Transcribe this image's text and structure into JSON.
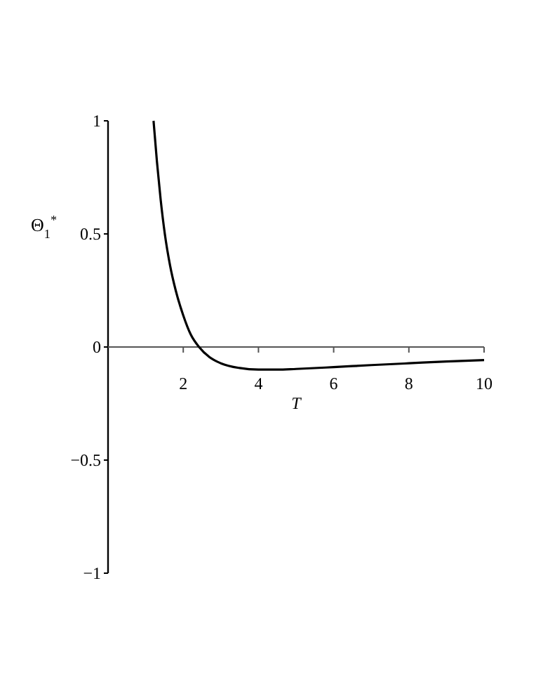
{
  "chart_data": {
    "type": "line",
    "xlabel": "T",
    "ylabel": "Θ$_{1}$$^{*}$",
    "xlim": [
      0,
      10
    ],
    "ylim": [
      -1,
      1
    ],
    "xticks": [
      2,
      4,
      6,
      8,
      10
    ],
    "yticks": [
      {
        "value": -1,
        "label": "−1"
      },
      {
        "value": -0.5,
        "label": "−0.5"
      },
      0,
      0.5,
      1
    ],
    "series": [
      {
        "color": "#000000",
        "x": [
          1.21,
          1.3,
          1.4,
          1.51,
          1.65,
          1.8,
          2.0,
          2.2,
          2.42,
          2.7,
          3,
          3.5,
          4,
          4.5,
          5,
          6,
          7,
          8,
          9,
          10
        ],
        "values": [
          1,
          0.82,
          0.65,
          0.5,
          0.36,
          0.25,
          0.14,
          0.055,
          0,
          -0.045,
          -0.072,
          -0.093,
          -0.1,
          -0.1,
          -0.097,
          -0.089,
          -0.08,
          -0.072,
          -0.064,
          -0.058
        ]
      }
    ]
  }
}
